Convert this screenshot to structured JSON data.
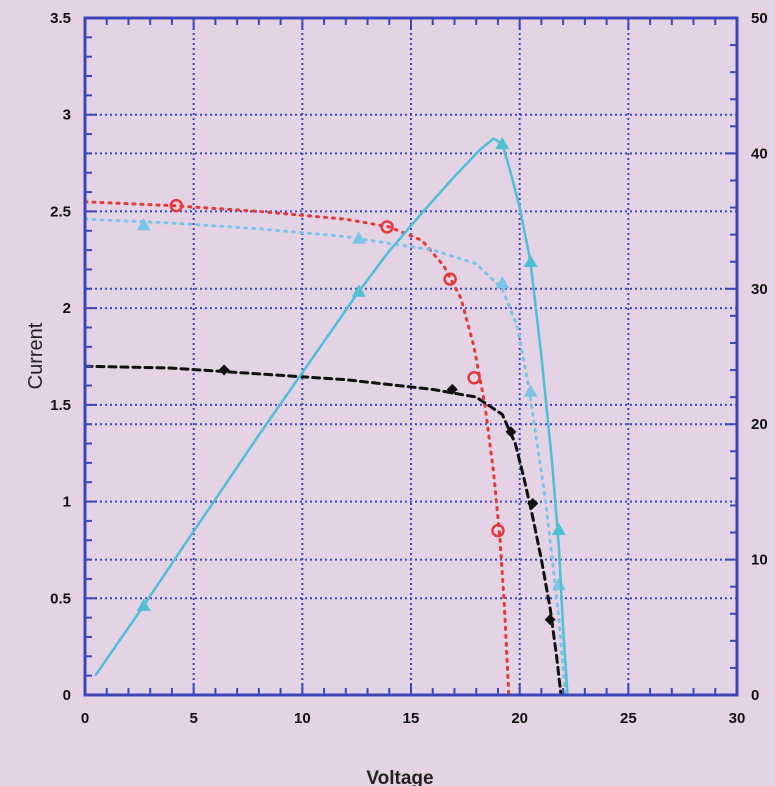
{
  "chart_data": {
    "type": "line",
    "title": "",
    "xlabel": "Voltage",
    "ylabel": "Current",
    "ylabel_right": "",
    "xlim": [
      0,
      30
    ],
    "ylim": [
      0,
      3.5
    ],
    "y2lim": [
      0,
      50
    ],
    "xticks": [
      0,
      5,
      10,
      15,
      20,
      25,
      30
    ],
    "yticks": [
      0,
      0.5,
      1,
      1.5,
      2,
      2.5,
      3,
      3.5
    ],
    "y2ticks": [
      0,
      10,
      20,
      30,
      40,
      50
    ],
    "grid": true,
    "legend": "none",
    "series": [
      {
        "axis": "left",
        "color": "#e23a3a",
        "line": "dotted",
        "marker": "circle",
        "curve": [
          [
            0,
            2.55
          ],
          [
            4,
            2.53
          ],
          [
            8,
            2.5
          ],
          [
            12,
            2.46
          ],
          [
            14,
            2.42
          ],
          [
            15.5,
            2.35
          ],
          [
            16.5,
            2.22
          ],
          [
            17.3,
            2.05
          ],
          [
            17.9,
            1.8
          ],
          [
            18.4,
            1.5
          ],
          [
            18.8,
            1.15
          ],
          [
            19.1,
            0.8
          ],
          [
            19.3,
            0.45
          ],
          [
            19.5,
            0
          ]
        ],
        "markers": [
          [
            4.2,
            2.53
          ],
          [
            13.9,
            2.42
          ],
          [
            16.8,
            2.15
          ],
          [
            17.9,
            1.64
          ],
          [
            19.0,
            0.85
          ]
        ]
      },
      {
        "axis": "left",
        "color": "#7cc4e6",
        "line": "dotted",
        "marker": "triangle",
        "curve": [
          [
            0,
            2.46
          ],
          [
            4,
            2.44
          ],
          [
            8,
            2.41
          ],
          [
            12,
            2.37
          ],
          [
            16,
            2.3
          ],
          [
            18,
            2.23
          ],
          [
            19.2,
            2.1
          ],
          [
            19.9,
            1.9
          ],
          [
            20.4,
            1.6
          ],
          [
            20.8,
            1.3
          ],
          [
            21.2,
            1.0
          ],
          [
            21.5,
            0.7
          ],
          [
            21.8,
            0.4
          ],
          [
            22.1,
            0
          ]
        ],
        "markers": [
          [
            2.7,
            2.43
          ],
          [
            12.6,
            2.36
          ],
          [
            19.2,
            2.13
          ],
          [
            20.5,
            1.57
          ],
          [
            21.8,
            0.57
          ]
        ]
      },
      {
        "axis": "left",
        "color": "#111111",
        "line": "dashed",
        "marker": "diamond",
        "curve": [
          [
            0,
            1.7
          ],
          [
            4,
            1.69
          ],
          [
            8,
            1.66
          ],
          [
            12,
            1.63
          ],
          [
            16,
            1.58
          ],
          [
            18,
            1.54
          ],
          [
            19.2,
            1.45
          ],
          [
            19.8,
            1.3
          ],
          [
            20.2,
            1.12
          ],
          [
            20.6,
            0.92
          ],
          [
            21.0,
            0.7
          ],
          [
            21.4,
            0.45
          ],
          [
            21.7,
            0.2
          ],
          [
            21.9,
            0
          ]
        ],
        "markers": [
          [
            6.4,
            1.68
          ],
          [
            16.9,
            1.58
          ],
          [
            19.6,
            1.36
          ],
          [
            20.6,
            0.99
          ],
          [
            21.4,
            0.39
          ]
        ]
      },
      {
        "axis": "right",
        "color": "#4fbfd6",
        "line": "solid",
        "marker": "triangle",
        "curve": [
          [
            0.5,
            1.5
          ],
          [
            2.7,
            6.6
          ],
          [
            5,
            12.1
          ],
          [
            8,
            19.2
          ],
          [
            10,
            23.8
          ],
          [
            12.6,
            29.8
          ],
          [
            14,
            32.8
          ],
          [
            15.5,
            35.6
          ],
          [
            17,
            38.3
          ],
          [
            18.2,
            40.3
          ],
          [
            18.8,
            41.1
          ],
          [
            19.2,
            40.7
          ],
          [
            19.6,
            38.5
          ],
          [
            20,
            36
          ],
          [
            20.5,
            32
          ],
          [
            21,
            25
          ],
          [
            21.5,
            17
          ],
          [
            21.8,
            11
          ],
          [
            22,
            5
          ],
          [
            22.2,
            0
          ]
        ],
        "markers": [
          [
            2.7,
            6.6
          ],
          [
            12.6,
            29.8
          ],
          [
            19.2,
            40.7
          ],
          [
            20.5,
            32.0
          ],
          [
            21.8,
            12.2
          ]
        ]
      }
    ]
  },
  "colors": {
    "background": "#e4d3e4",
    "axis": "#3b46b8",
    "grid": "#3b46b8"
  }
}
